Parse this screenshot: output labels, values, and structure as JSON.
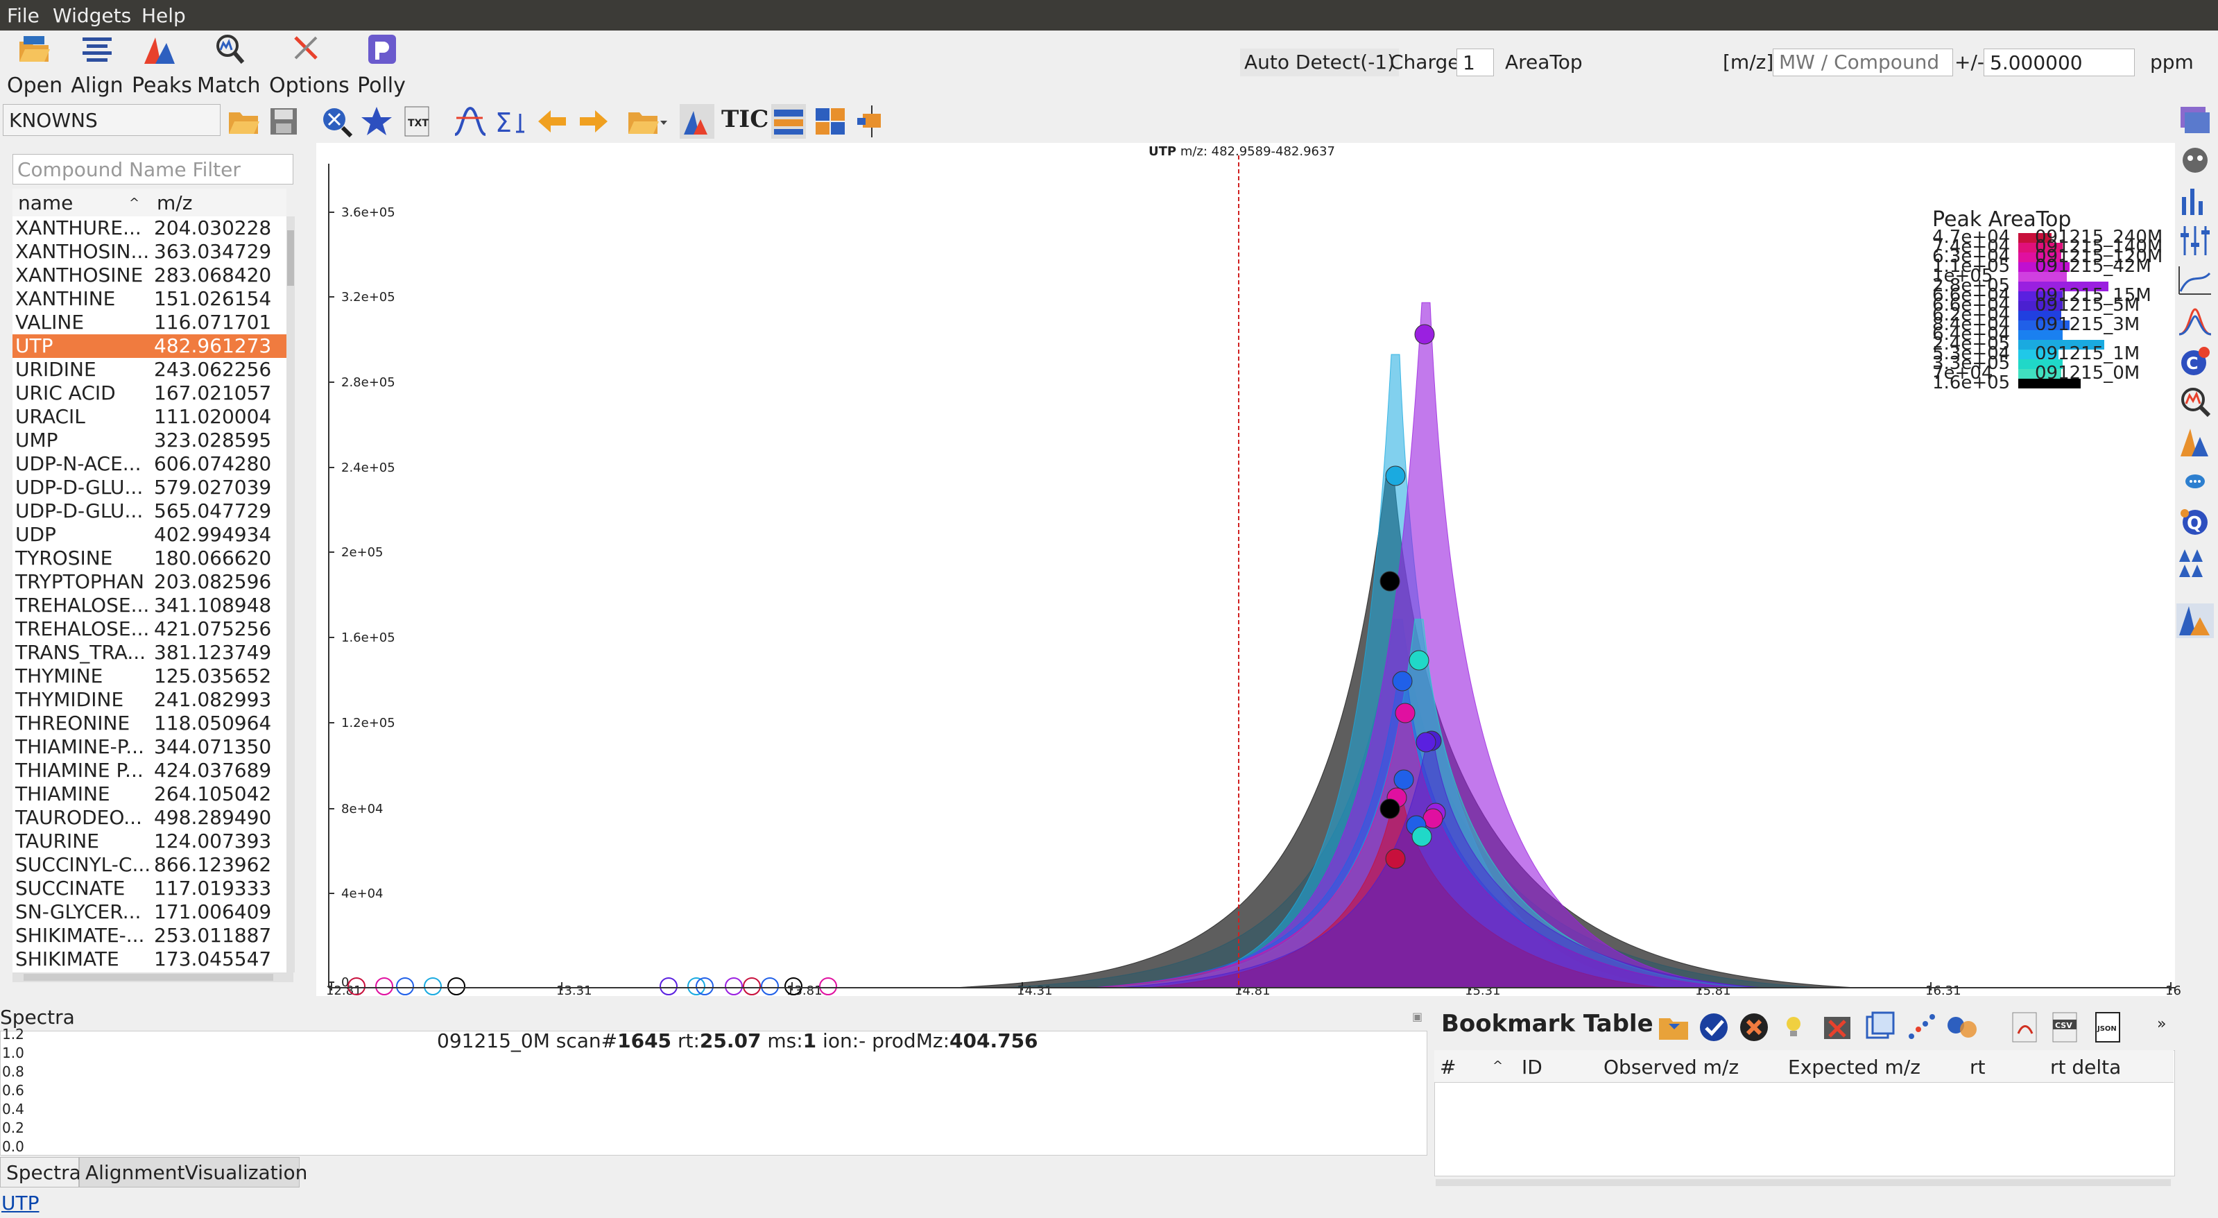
{
  "menu": [
    {
      "label": "File",
      "name": "menu-file"
    },
    {
      "label": "Widgets",
      "name": "menu-widgets"
    },
    {
      "label": "Help",
      "name": "menu-help"
    }
  ],
  "toolbar": {
    "open": "Open",
    "align": "Align",
    "peaks": "Peaks",
    "match": "Match",
    "options": "Options",
    "polly": "Polly",
    "auto_detect": "Auto Detect(-1)",
    "charge_label": "Charge",
    "charge_value": "1",
    "areatype": "AreaTop",
    "mz_label": "[m/z]",
    "mz_placeholder": "MW / Compound",
    "plusminus_label": "+/-",
    "ppm_value": "5.000000",
    "ppm_unit": "ppm",
    "database": "KNOWNS",
    "tic": "TIC"
  },
  "compounds": {
    "filter_placeholder": "Compound Name Filter",
    "col_name": "name",
    "col_mz": "m/z",
    "selected_index": 5,
    "rows": [
      {
        "name": "XANTHURE...",
        "mz": "204.030228"
      },
      {
        "name": "XANTHOSIN...",
        "mz": "363.034729"
      },
      {
        "name": "XANTHOSINE",
        "mz": "283.068420"
      },
      {
        "name": "XANTHINE",
        "mz": "151.026154"
      },
      {
        "name": "VALINE",
        "mz": "116.071701"
      },
      {
        "name": "UTP",
        "mz": "482.961273"
      },
      {
        "name": "URIDINE",
        "mz": "243.062256"
      },
      {
        "name": "URIC ACID",
        "mz": "167.021057"
      },
      {
        "name": "URACIL",
        "mz": "111.020004"
      },
      {
        "name": "UMP",
        "mz": "323.028595"
      },
      {
        "name": "UDP-N-ACE...",
        "mz": "606.074280"
      },
      {
        "name": "UDP-D-GLU...",
        "mz": "579.027039"
      },
      {
        "name": "UDP-D-GLU...",
        "mz": "565.047729"
      },
      {
        "name": "UDP",
        "mz": "402.994934"
      },
      {
        "name": "TYROSINE",
        "mz": "180.066620"
      },
      {
        "name": "TRYPTOPHAN",
        "mz": "203.082596"
      },
      {
        "name": "TREHALOSE...",
        "mz": "341.108948"
      },
      {
        "name": "TREHALOSE...",
        "mz": "421.075256"
      },
      {
        "name": "TRANS_TRA...",
        "mz": "381.123749"
      },
      {
        "name": "THYMINE",
        "mz": "125.035652"
      },
      {
        "name": "THYMIDINE",
        "mz": "241.082993"
      },
      {
        "name": "THREONINE",
        "mz": "118.050964"
      },
      {
        "name": "THIAMINE-P...",
        "mz": "344.071350"
      },
      {
        "name": "THIAMINE P...",
        "mz": "424.037689"
      },
      {
        "name": "THIAMINE",
        "mz": "264.105042"
      },
      {
        "name": "TAURODEO...",
        "mz": "498.289490"
      },
      {
        "name": "TAURINE",
        "mz": "124.007393"
      },
      {
        "name": "SUCCINYL-C...",
        "mz": "866.123962"
      },
      {
        "name": "SUCCINATE",
        "mz": "117.019333"
      },
      {
        "name": "SN-GLYCER...",
        "mz": "171.006409"
      },
      {
        "name": "SHIKIMATE-...",
        "mz": "253.011887"
      },
      {
        "name": "SHIKIMATE",
        "mz": "173.045547"
      }
    ]
  },
  "eic": {
    "title_bold": "UTP",
    "title_rest": " m/z: 482.9589-482.9637",
    "legend_title": "Peak AreaTop",
    "legend_values": [
      "4.7e+04",
      "7.4e+04",
      "6.3e+04",
      "1.1e+05",
      "1e+05",
      "2.8e+05",
      "6.6e+04",
      "6.6e+04",
      "6.2e+04",
      "8.4e+04",
      "6.4e+04",
      "2.4e+05",
      "5.3e+04",
      "3.3e+05",
      "7e+04",
      "1.6e+05"
    ],
    "legend_labels": [
      "091215_240M",
      "091215_140M",
      "091215_120M",
      "091215_42M",
      "",
      "",
      "091215_15M",
      "091215_5M",
      "",
      "091215_3M",
      "",
      "",
      "091215_1M",
      "",
      "091215_0M",
      ""
    ],
    "legend_colors": [
      "#c8103c",
      "#e0107a",
      "#e010a0",
      "#c010d0",
      "#d040e0",
      "#9a20e0",
      "#5a20e0",
      "#4a20d0",
      "#2040e0",
      "#2060e8",
      "#1a80f0",
      "#1aaae0",
      "#20c8e8",
      "#20d8c8",
      "#40e0c0",
      "#000000"
    ],
    "y_ticks": [
      "3.6e+05",
      "3.2e+05",
      "2.8e+05",
      "2.4e+05",
      "2e+05",
      "1.6e+05",
      "1.2e+05",
      "8e+04",
      "4e+04",
      "0"
    ],
    "x_ticks": [
      "12.81",
      "13.31",
      "13.81",
      "14.31",
      "14.81",
      "15.31",
      "15.81",
      "16.31",
      "16"
    ],
    "marker_line_label": ""
  },
  "spectra": {
    "title": "Spectra",
    "info_sample": "091215_0M scan#",
    "info_scan": "1645",
    "info_rt_label": " rt:",
    "info_rt": "25.07",
    "info_ms_label": " ms:",
    "info_ms": "1",
    "info_ion": " ion:- prodMz:",
    "info_prodmz": "404.756",
    "y_ticks": [
      "1.2",
      "1.0",
      "0.8",
      "0.6",
      "0.4",
      "0.2",
      "0.0"
    ],
    "tabs": [
      "Spectra",
      "AlignmentVisualization"
    ]
  },
  "bookmarks": {
    "title": "Bookmark Table",
    "columns": [
      "#",
      "ID",
      "Observed m/z",
      "Expected m/z",
      "rt",
      "rt delta"
    ]
  },
  "status": {
    "text": "UTP"
  }
}
